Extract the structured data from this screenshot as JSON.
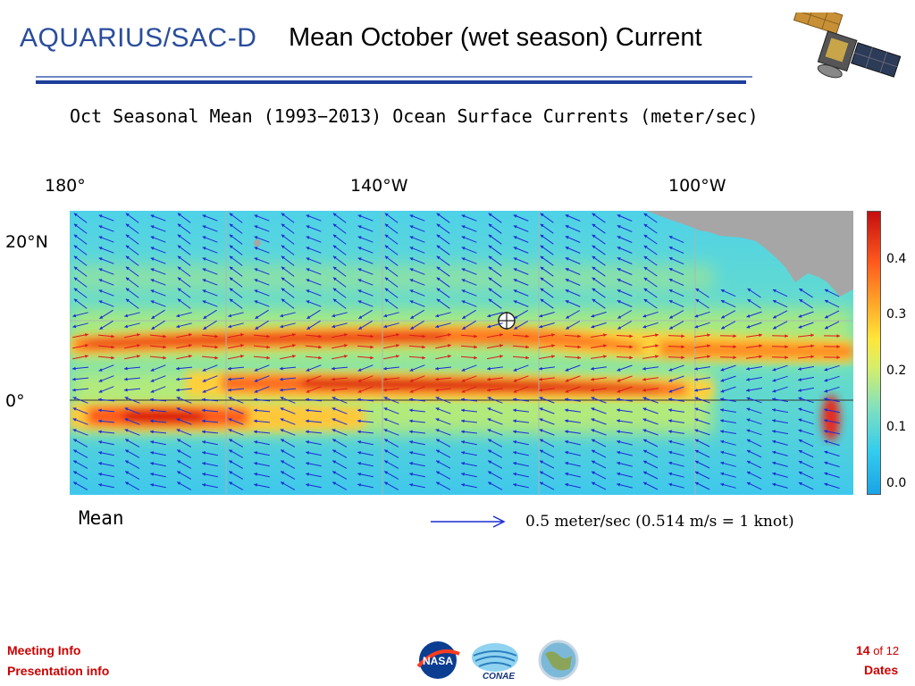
{
  "header": {
    "logo_text": "AQUARIUS/SAC-D",
    "title": "Mean October (wet season) Current"
  },
  "map": {
    "title": "Oct Seasonal Mean (1993−2013) Ocean Surface Currents (meter/sec)",
    "lon_labels": [
      "180°",
      "140°W",
      "100°W"
    ],
    "lat_labels": [
      "20°N",
      "0°"
    ],
    "colorbar_ticks": [
      "0.4",
      "0.3",
      "0.2",
      "0.1",
      "0.0"
    ],
    "legend_mean": "Mean",
    "legend_speed": "0.5 meter/sec   (0.514 m/s = 1 knot)",
    "colors": {
      "arrow_blue": "#1b2bd6",
      "arrow_red": "#dd1b1b",
      "land": "#a6a6a6"
    }
  },
  "footer": {
    "left_line1": "Meeting Info",
    "left_line2": "Presentation info",
    "page_current": "14",
    "page_of": "of 12",
    "right_label": "Dates",
    "logos": [
      "nasa-logo",
      "conae-logo",
      "inpe-logo"
    ],
    "conae_text": "CONAE"
  }
}
